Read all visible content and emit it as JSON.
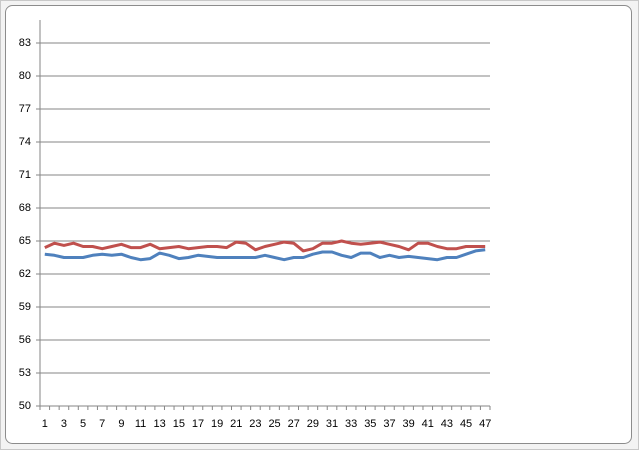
{
  "chart_data": {
    "type": "line",
    "categories": [
      1,
      null,
      3,
      null,
      5,
      null,
      7,
      null,
      9,
      null,
      11,
      null,
      13,
      null,
      15,
      null,
      17,
      null,
      19,
      null,
      21,
      null,
      23,
      null,
      25,
      null,
      27,
      null,
      29,
      null,
      31,
      null,
      33,
      null,
      35,
      null,
      37,
      null,
      39,
      null,
      41,
      null,
      43,
      null,
      45,
      null,
      47
    ],
    "series": [
      {
        "color": "#4f81bd",
        "values": [
          63.8,
          63.7,
          63.5,
          63.5,
          63.5,
          63.7,
          63.8,
          63.7,
          63.8,
          63.5,
          63.3,
          63.4,
          63.9,
          63.7,
          63.4,
          63.5,
          63.7,
          63.6,
          63.5,
          63.5,
          63.5,
          63.5,
          63.5,
          63.7,
          63.5,
          63.3,
          63.5,
          63.5,
          63.8,
          64.0,
          64.0,
          63.7,
          63.5,
          63.9,
          63.9,
          63.5,
          63.7,
          63.5,
          63.6,
          63.5,
          63.4,
          63.3,
          63.5,
          63.5,
          63.8,
          64.1,
          64.2
        ]
      },
      {
        "color": "#c0504d",
        "values": [
          64.4,
          64.8,
          64.6,
          64.8,
          64.5,
          64.5,
          64.3,
          64.5,
          64.7,
          64.4,
          64.4,
          64.7,
          64.3,
          64.4,
          64.5,
          64.3,
          64.4,
          64.5,
          64.5,
          64.4,
          64.9,
          64.8,
          64.2,
          64.5,
          64.7,
          64.9,
          64.8,
          64.1,
          64.3,
          64.8,
          64.8,
          65.0,
          64.8,
          64.7,
          64.8,
          64.9,
          64.7,
          64.5,
          64.2,
          64.8,
          64.8,
          64.5,
          64.3,
          64.3,
          64.5,
          64.5,
          64.5
        ]
      }
    ],
    "ylim": [
      50,
      85
    ],
    "yticks": [
      50,
      53,
      56,
      59,
      62,
      65,
      68,
      71,
      74,
      77,
      80,
      83
    ],
    "grid": true
  }
}
